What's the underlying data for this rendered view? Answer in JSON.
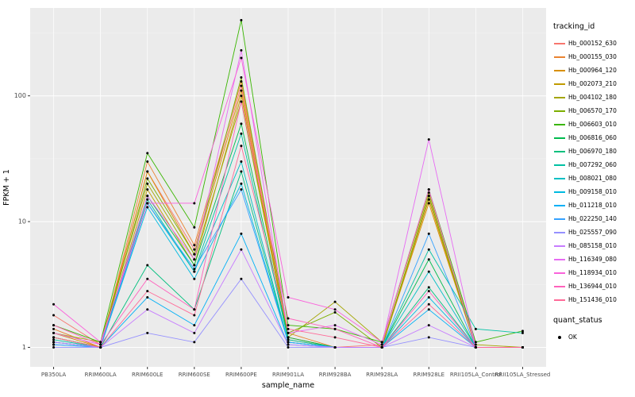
{
  "figure": {
    "background": "#FFFFFF",
    "panel_background": "#EBEBEB",
    "grid_major_color": "#FFFFFF",
    "grid_minor_color": "#F4F4F4",
    "axis_text_color": "#4D4D4D",
    "axis_title_color": "#000000",
    "tick_color": "#333333"
  },
  "chart_data": {
    "type": "line",
    "title": "",
    "xlabel": "sample_name",
    "ylabel": "FPKM + 1",
    "y_scale": "log10",
    "ylim": [
      0.7,
      500
    ],
    "y_ticks": [
      1,
      10,
      100
    ],
    "grid": true,
    "legend_position": "right",
    "point_color": "#000000",
    "categories": [
      "PB350LA",
      "RRIM600LA",
      "RRIM600LE",
      "RRIM600SE",
      "RRIM600PE",
      "RRIM901LA",
      "RRIM928BA",
      "RRIM928LA",
      "RRIM928LE",
      "RRII105LA_Control",
      "RRII105LA_Stressed"
    ],
    "series": [
      {
        "name": "Hb_000152_630",
        "color": "#F8766D",
        "values": [
          1.8,
          1.05,
          25,
          6,
          120,
          1.2,
          1.0,
          1.05,
          15,
          1.0,
          1.0
        ]
      },
      {
        "name": "Hb_000155_030",
        "color": "#EA8331",
        "values": [
          1.4,
          1.0,
          30,
          6.5,
          130,
          1.3,
          1.0,
          1.0,
          16,
          1.0,
          1.0
        ]
      },
      {
        "name": "Hb_000964_120",
        "color": "#D89000",
        "values": [
          1.3,
          1.0,
          25,
          5.5,
          110,
          1.2,
          1.0,
          1.0,
          14,
          1.0,
          1.0
        ]
      },
      {
        "name": "Hb_002073_210",
        "color": "#C09B00",
        "values": [
          1.2,
          1.0,
          18,
          4.5,
          100,
          1.15,
          1.0,
          1.0,
          15,
          1.0,
          1.0
        ]
      },
      {
        "name": "Hb_004102_180",
        "color": "#A3A500",
        "values": [
          1.3,
          1.1,
          20,
          5,
          90,
          1.2,
          2.3,
          1.1,
          17,
          1.05,
          1.0
        ]
      },
      {
        "name": "Hb_006570_170",
        "color": "#7CAE00",
        "values": [
          1.2,
          1.0,
          22,
          5.5,
          140,
          1.3,
          1.9,
          1.0,
          16,
          1.0,
          1.0
        ]
      },
      {
        "name": "Hb_006603_010",
        "color": "#39B600",
        "values": [
          1.5,
          1.1,
          35,
          9,
          400,
          1.5,
          1.4,
          1.1,
          18,
          1.1,
          1.35
        ]
      },
      {
        "name": "Hb_006816_060",
        "color": "#00BB4E",
        "values": [
          1.2,
          1.0,
          16,
          4.5,
          60,
          1.2,
          1.0,
          1.0,
          5,
          1.0,
          1.0
        ]
      },
      {
        "name": "Hb_006970_180",
        "color": "#00BF7D",
        "values": [
          1.1,
          1.0,
          4.5,
          2.0,
          25,
          1.1,
          1.0,
          1.0,
          3,
          1.0,
          1.0
        ]
      },
      {
        "name": "Hb_007292_060",
        "color": "#00C1A3",
        "values": [
          1.15,
          1.0,
          15,
          4,
          50,
          1.15,
          1.0,
          1.0,
          6,
          1.4,
          1.3
        ]
      },
      {
        "name": "Hb_008021_080",
        "color": "#00BFC4",
        "values": [
          1.1,
          1.0,
          14,
          4,
          30,
          1.1,
          1.0,
          1.0,
          4,
          1.0,
          1.0
        ]
      },
      {
        "name": "Hb_009158_010",
        "color": "#00BAE0",
        "values": [
          1.1,
          1.0,
          13,
          3.5,
          20,
          1.1,
          1.0,
          1.0,
          2.5,
          1.0,
          1.0
        ]
      },
      {
        "name": "Hb_011218_010",
        "color": "#00B0F6",
        "values": [
          1.05,
          1.0,
          2.5,
          1.5,
          8,
          1.05,
          1.0,
          1.0,
          2.0,
          1.0,
          1.0
        ]
      },
      {
        "name": "Hb_022250_140",
        "color": "#35A2FF",
        "values": [
          1.05,
          1.0,
          14,
          4.2,
          18,
          1.1,
          1.0,
          1.0,
          8,
          1.0,
          1.0
        ]
      },
      {
        "name": "Hb_025557_090",
        "color": "#9590FF",
        "values": [
          1.0,
          1.0,
          1.3,
          1.1,
          3.5,
          1.0,
          1.0,
          1.0,
          1.2,
          1.0,
          1.0
        ]
      },
      {
        "name": "Hb_085158_010",
        "color": "#C77CFF",
        "values": [
          1.1,
          1.0,
          2.0,
          1.3,
          6,
          1.05,
          1.0,
          1.0,
          1.5,
          1.0,
          1.0
        ]
      },
      {
        "name": "Hb_116349_080",
        "color": "#E76BF3",
        "values": [
          1.3,
          1.05,
          16,
          5,
          230,
          1.3,
          1.5,
          1.05,
          45,
          1.0,
          1.0
        ]
      },
      {
        "name": "Hb_118934_010",
        "color": "#FA62DB",
        "values": [
          2.2,
          1.1,
          14,
          14,
          200,
          2.5,
          2.0,
          1.1,
          18,
          1.0,
          1.0
        ]
      },
      {
        "name": "Hb_136944_010",
        "color": "#FF62BC",
        "values": [
          1.5,
          1.05,
          3.5,
          2.0,
          90,
          1.7,
          1.4,
          1.0,
          2.8,
          1.0,
          1.0
        ]
      },
      {
        "name": "Hb_151436_010",
        "color": "#FF6A98",
        "values": [
          1.2,
          1.0,
          2.8,
          1.8,
          40,
          1.4,
          1.2,
          1.0,
          2.2,
          1.0,
          1.0
        ]
      }
    ],
    "legend": {
      "color_title": "tracking_id",
      "shape_title": "quant_status",
      "shape_items": [
        {
          "label": "OK"
        }
      ]
    }
  }
}
